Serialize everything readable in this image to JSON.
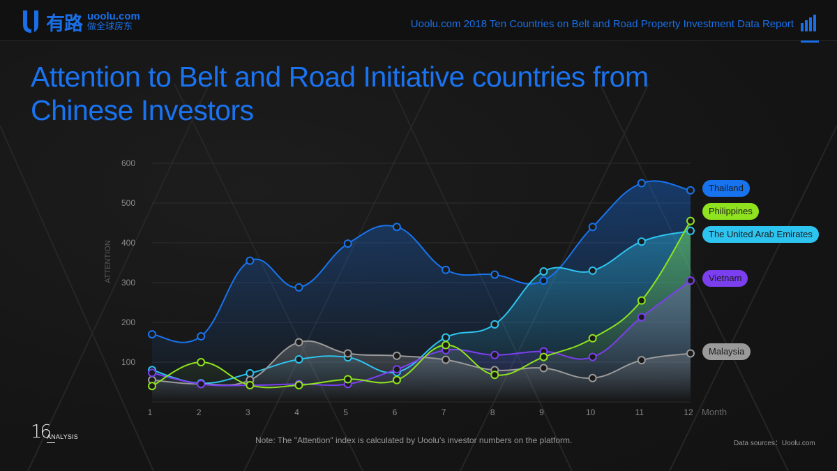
{
  "header": {
    "logo_cn": "有路",
    "logo_domain": "uoolu.com",
    "logo_slogan": "做全球房东",
    "report_title": "Uoolu.com 2018 Ten Countries on Belt and Road Property Investment Data Report",
    "report_icon": "bar-chart-icon"
  },
  "title": "Attention to Belt and Road Initiative countries from Chinese Investors",
  "footer": {
    "page_number": "16",
    "section": "ANALYSIS",
    "note": "Note: The \"Attention\" index is calculated by Uoolu’s investor numbers on the platform.",
    "source": "Data sources：Uoolu.com"
  },
  "colors": {
    "accent": "#1a73f0",
    "Thailand": "#1874ee",
    "Philippines": "#8fe31e",
    "The United Arab Emirates": "#2ec4f0",
    "Vietnam": "#7b3ff0",
    "Malaysia": "#9a9a9a"
  },
  "chart_data": {
    "type": "line",
    "title": "Attention to Belt and Road Initiative countries from Chinese Investors",
    "xlabel": "Month",
    "ylabel": "ATTENTION",
    "x": [
      1,
      2,
      3,
      4,
      5,
      6,
      7,
      8,
      9,
      10,
      11,
      12
    ],
    "x_tick_labels": [
      "1",
      "2",
      "3",
      "4",
      "5",
      "6",
      "7",
      "8",
      "9",
      "10",
      "11",
      "12"
    ],
    "y_ticks": [
      100,
      200,
      300,
      400,
      500,
      600
    ],
    "y_tick_labels": [
      "100",
      "200",
      "300",
      "400",
      "500",
      "600"
    ],
    "ylim": [
      0,
      600
    ],
    "grid": true,
    "legend_placement": "right",
    "series": [
      {
        "name": "Thailand",
        "values": [
          170,
          165,
          355,
          288,
          398,
          440,
          332,
          320,
          305,
          440,
          550,
          532
        ]
      },
      {
        "name": "Philippines",
        "values": [
          40,
          100,
          42,
          42,
          57,
          55,
          143,
          68,
          113,
          160,
          255,
          455
        ]
      },
      {
        "name": "The United Arab Emirates",
        "values": [
          80,
          47,
          72,
          107,
          112,
          75,
          162,
          195,
          328,
          330,
          403,
          430
        ]
      },
      {
        "name": "Vietnam",
        "values": [
          73,
          45,
          42,
          45,
          45,
          82,
          130,
          118,
          127,
          113,
          213,
          305
        ]
      },
      {
        "name": "Malaysia",
        "values": [
          55,
          45,
          55,
          150,
          122,
          116,
          106,
          80,
          85,
          60,
          105,
          122
        ]
      }
    ]
  }
}
